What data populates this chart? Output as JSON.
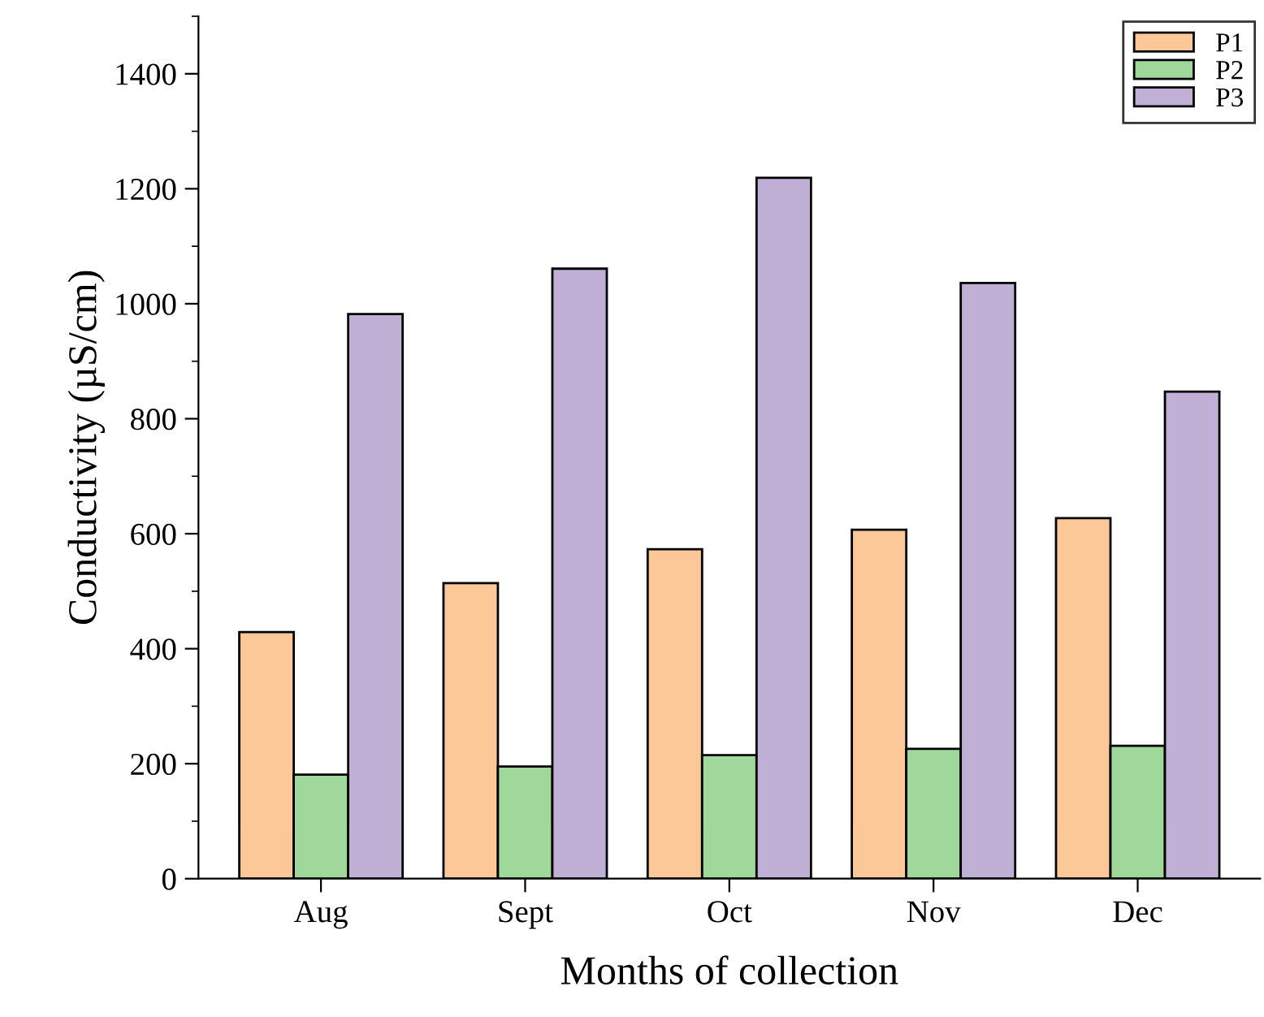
{
  "chart_data": {
    "type": "bar",
    "xlabel": "Months of collection",
    "ylabel": "Conductivity (µS/cm)",
    "categories": [
      "Aug",
      "Sept",
      "Oct",
      "Nov",
      "Dec"
    ],
    "series": [
      {
        "name": "P1",
        "color": "#fdc897",
        "values": [
          429,
          514,
          573,
          607,
          627
        ]
      },
      {
        "name": "P2",
        "color": "#a0d89c",
        "values": [
          181,
          195,
          215,
          226,
          231
        ]
      },
      {
        "name": "P3",
        "color": "#c0b0d6",
        "values": [
          982,
          1061,
          1219,
          1036,
          847
        ]
      }
    ],
    "ylim": [
      0,
      1500
    ],
    "yticks": [
      0,
      200,
      400,
      600,
      800,
      1000,
      1200,
      1400
    ],
    "grid": false,
    "legend": "top right"
  }
}
